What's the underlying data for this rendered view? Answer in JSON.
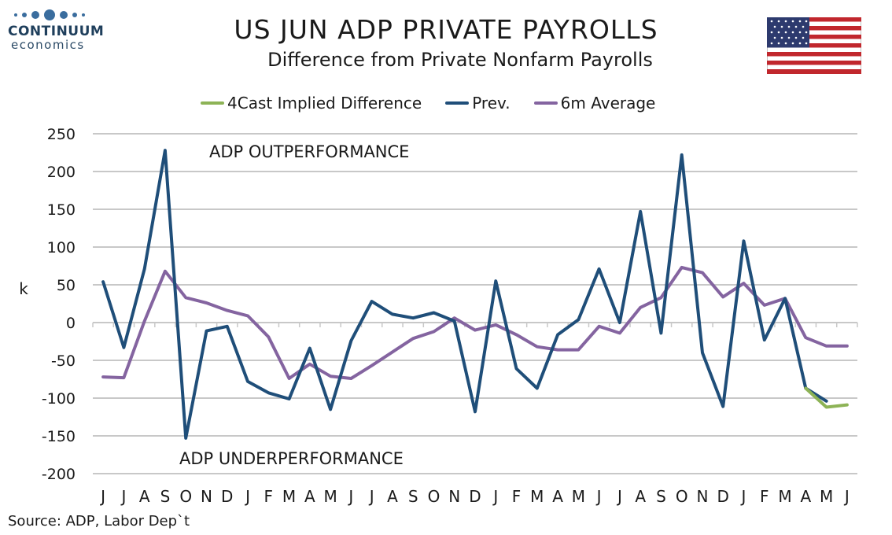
{
  "header": {
    "title": "US JUN ADP PRIVATE PAYROLLS",
    "subtitle": "Difference from Private Nonfarm Payrolls"
  },
  "logo": {
    "name": "CONTINUUM",
    "sub": "economics",
    "color": "#3a6d9e"
  },
  "source": "Source: ADP, Labor Dep`t",
  "colors": {
    "forecast": "#8db356",
    "prev": "#1f4e79",
    "avg": "#8464a0",
    "grid": "#c8c8c8"
  },
  "chart_data": {
    "type": "line",
    "ylabel": "k",
    "ylim": [
      -200,
      250
    ],
    "yticks": [
      250,
      200,
      150,
      100,
      50,
      0,
      -50,
      -100,
      -150,
      -200
    ],
    "grid": true,
    "legend_position": "top",
    "categories": [
      "J",
      "J",
      "A",
      "S",
      "O",
      "N",
      "D",
      "J",
      "F",
      "M",
      "A",
      "M",
      "J",
      "J",
      "A",
      "S",
      "O",
      "N",
      "D",
      "J",
      "F",
      "M",
      "A",
      "M",
      "J",
      "J",
      "A",
      "S",
      "O",
      "N",
      "D",
      "J",
      "F",
      "M",
      "A",
      "M",
      "J"
    ],
    "series": [
      {
        "name": "4Cast Implied Difference",
        "values": [
          null,
          null,
          null,
          null,
          null,
          null,
          null,
          null,
          null,
          null,
          null,
          null,
          null,
          null,
          null,
          null,
          null,
          null,
          null,
          null,
          null,
          null,
          null,
          null,
          null,
          null,
          null,
          null,
          null,
          null,
          null,
          null,
          null,
          null,
          -87,
          -112,
          -109
        ]
      },
      {
        "name": "Prev.",
        "values": [
          54,
          -33,
          71,
          228,
          -153,
          -11,
          -5,
          -78,
          -93,
          -101,
          -34,
          -115,
          -24,
          28,
          11,
          6,
          13,
          2,
          -118,
          55,
          -61,
          -87,
          -16,
          4,
          71,
          0,
          147,
          -14,
          222,
          -40,
          -111,
          108,
          -23,
          32,
          -87,
          -104,
          null
        ]
      },
      {
        "name": "6m Average",
        "values": [
          -72,
          -73,
          2,
          68,
          33,
          26,
          16,
          9,
          -19,
          -74,
          -55,
          -71,
          -74,
          -57,
          -39,
          -21,
          -12,
          6,
          -10,
          -3,
          -16,
          -32,
          -36,
          -36,
          -5,
          -14,
          20,
          33,
          73,
          66,
          34,
          52,
          23,
          32,
          -20,
          -31,
          -31
        ]
      }
    ],
    "annotations": [
      "ADP OUTPERFORMANCE",
      "ADP UNDERPERFORMANCE"
    ]
  }
}
